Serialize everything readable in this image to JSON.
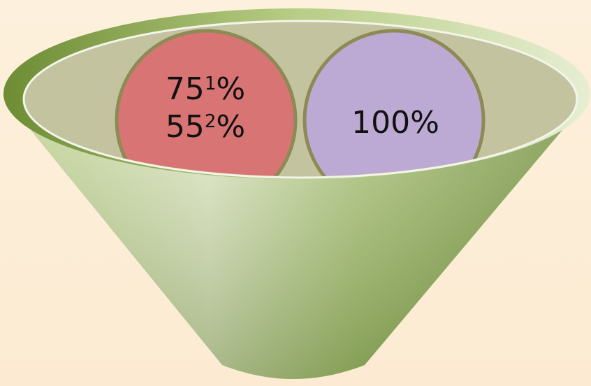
{
  "colors": {
    "background": "#fdf0dc",
    "funnel_light": "#dfe8c4",
    "funnel_mid": "#a9c275",
    "funnel_dark": "#6b8a33",
    "rim_inner": "#c3c29f",
    "circle_red": "#d97474",
    "circle_purple": "#bcaad4",
    "circle_border": "#8d8a56"
  },
  "circles": {
    "left": {
      "line1_value": "75",
      "line1_sup": "1",
      "line1_unit": "%",
      "line2_value": "55",
      "line2_sup": "2",
      "line2_unit": "%"
    },
    "right": {
      "label": "100%"
    }
  }
}
